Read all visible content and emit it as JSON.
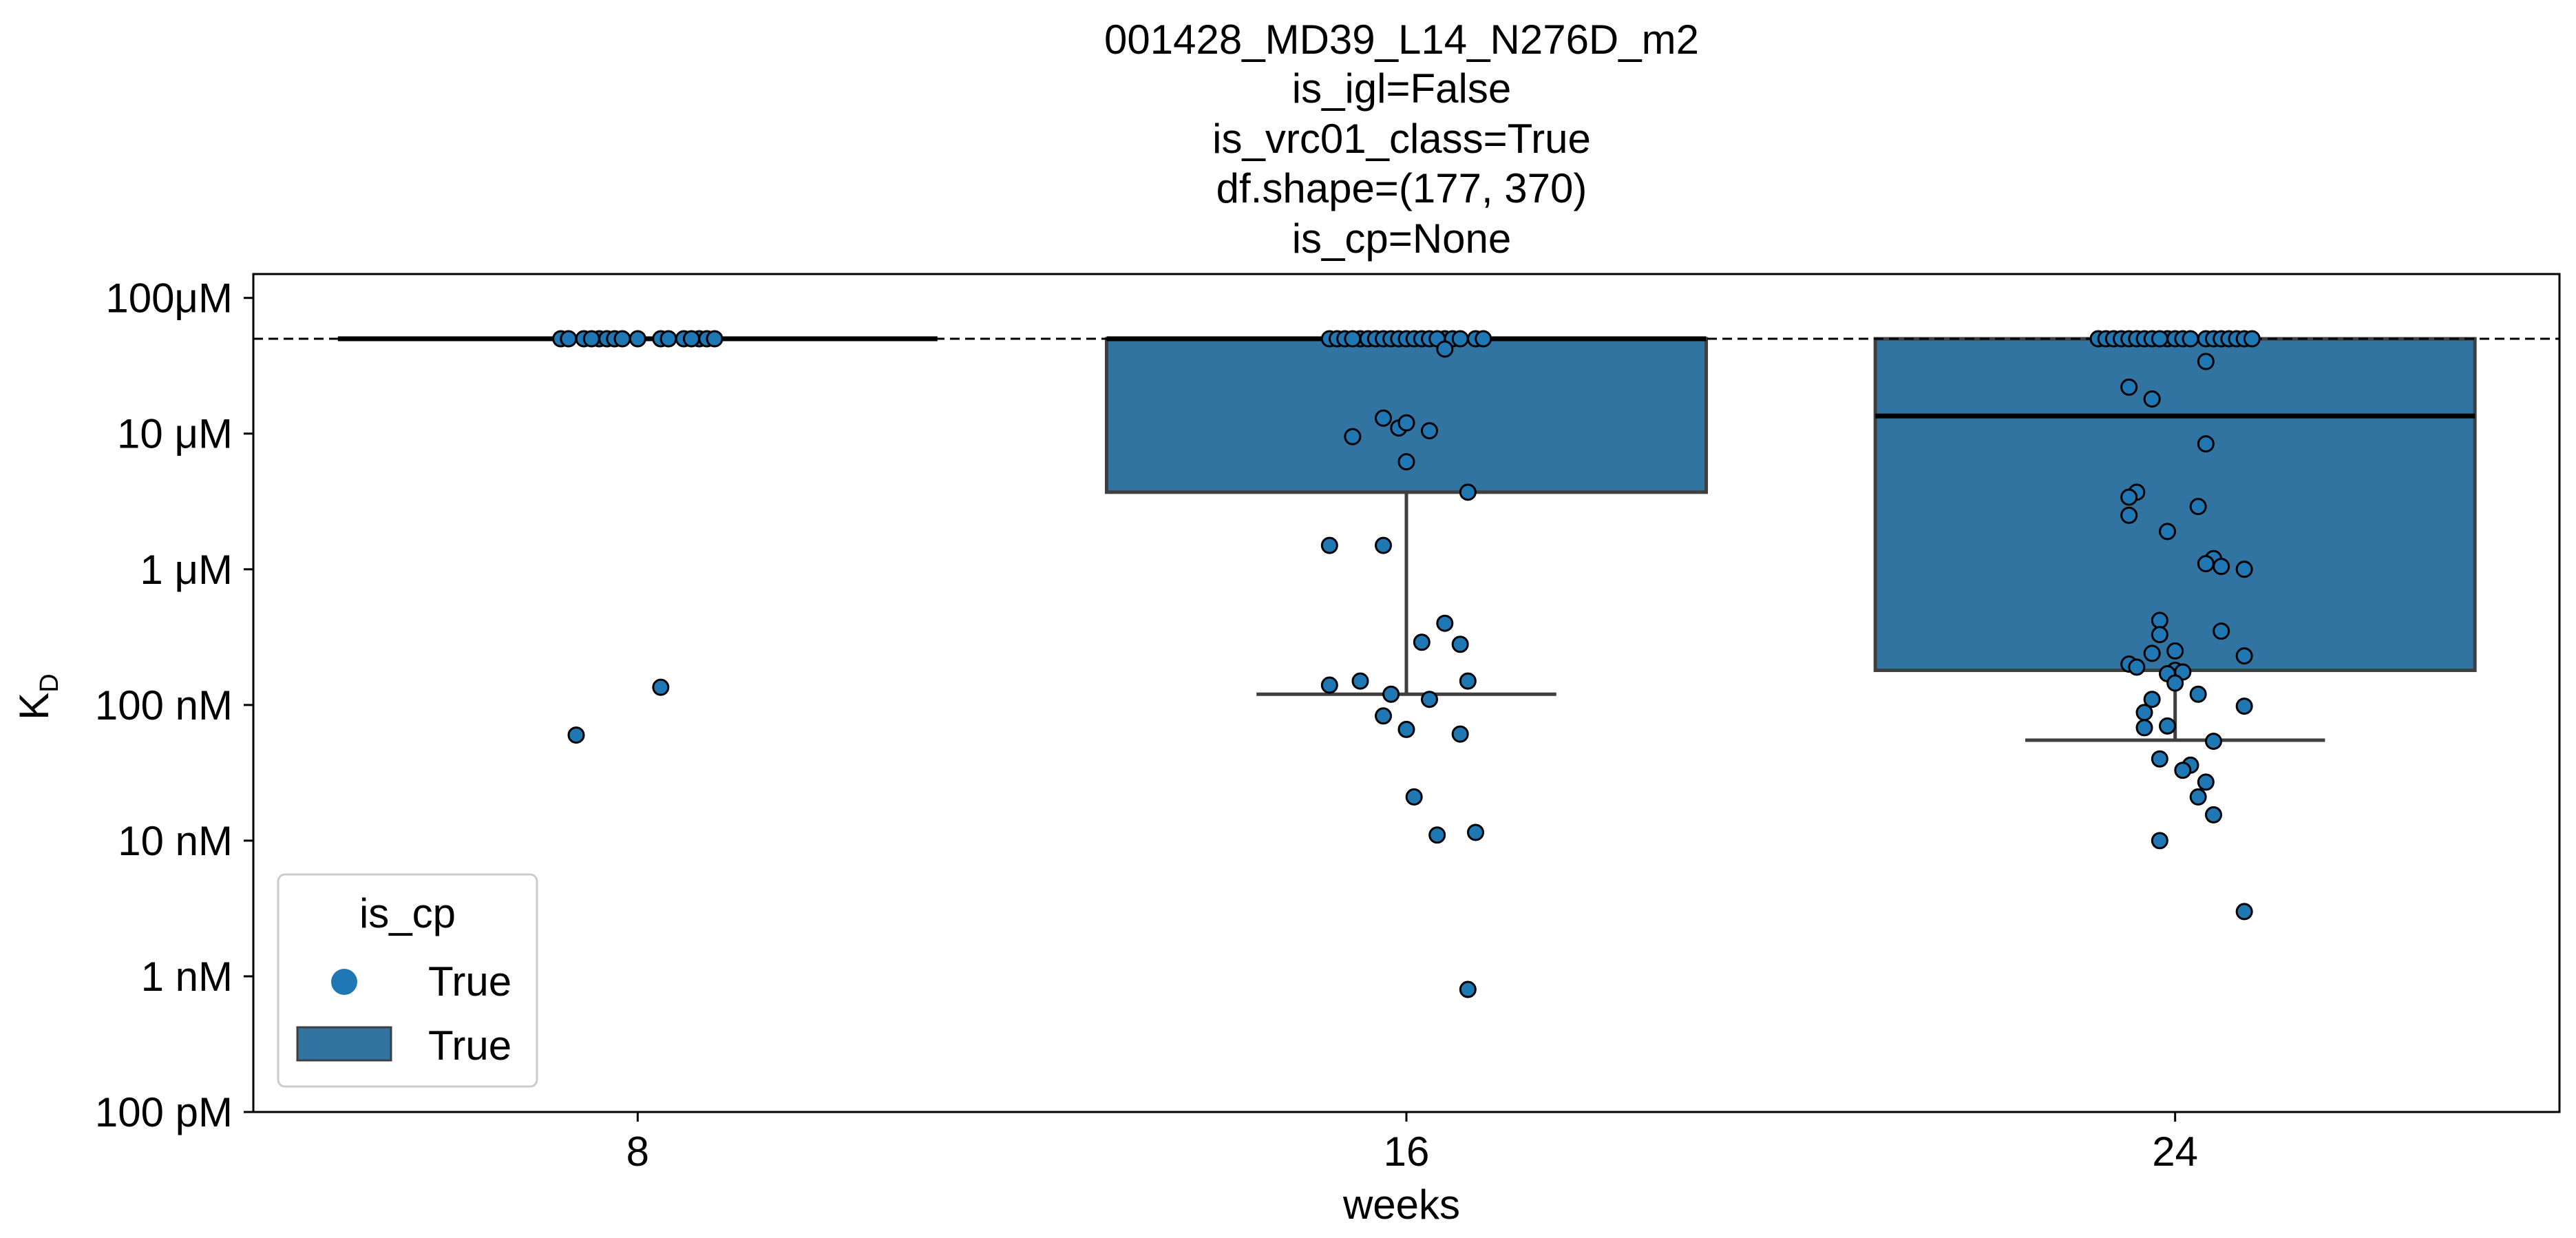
{
  "chart_data": {
    "type": "box",
    "title_lines": [
      "001428_MD39_L14_N276D_m2",
      "is_igl=False",
      "is_vrc01_class=True",
      "df.shape=(177, 370)",
      "is_cp=None"
    ],
    "xlabel": "weeks",
    "ylabel": "K",
    "ylabel_sub": "D",
    "y_scale": "log",
    "y_unit": "M",
    "ylim": [
      1e-10,
      0.00015
    ],
    "y_ticks": [
      {
        "value": 0.0001,
        "label": "100μM"
      },
      {
        "value": 1e-05,
        "label": "10 μM"
      },
      {
        "value": 1e-06,
        "label": "1 μM"
      },
      {
        "value": 1e-07,
        "label": "100 nM"
      },
      {
        "value": 1e-08,
        "label": "10 nM"
      },
      {
        "value": 1e-09,
        "label": "1 nM"
      },
      {
        "value": 1e-10,
        "label": "100 pM"
      }
    ],
    "categories": [
      "8",
      "16",
      "24"
    ],
    "reference_line": 5e-05,
    "box_color": "#3274a1",
    "point_color": "#1f77b4",
    "legend": {
      "title": "is_cp",
      "placement": "lower-left",
      "entries": [
        {
          "kind": "point",
          "label": "True"
        },
        {
          "kind": "box",
          "label": "True"
        }
      ]
    },
    "boxes": [
      {
        "category": "8",
        "q1": 5e-05,
        "median": 5e-05,
        "q3": 5e-05,
        "whisker_low": 5e-05,
        "whisker_high": 5e-05
      },
      {
        "category": "16",
        "q1": 3.7e-06,
        "median": 5e-05,
        "q3": 5e-05,
        "whisker_low": 1.2e-07,
        "whisker_high": 5e-05
      },
      {
        "category": "24",
        "q1": 1.8e-07,
        "median": 1.35e-05,
        "q3": 5e-05,
        "whisker_low": 5.5e-08,
        "whisker_high": 5e-05
      }
    ],
    "points": [
      {
        "category": "8",
        "values": [
          5e-05,
          5e-05,
          5e-05,
          5e-05,
          5e-05,
          5e-05,
          5e-05,
          5e-05,
          5e-05,
          5e-05,
          5e-05,
          5e-05,
          5e-05,
          5e-05,
          5e-05,
          5e-05,
          6e-08,
          1.35e-07
        ],
        "offsets": [
          -0.1,
          -0.09,
          -0.07,
          -0.05,
          -0.04,
          -0.03,
          -0.02,
          0,
          0.03,
          0.04,
          0.06,
          0.08,
          0.09,
          0.1,
          -0.06,
          0.07,
          -0.08,
          0.03
        ]
      },
      {
        "category": "16",
        "values": [
          5e-05,
          5e-05,
          5e-05,
          5e-05,
          5e-05,
          5e-05,
          5e-05,
          5e-05,
          5e-05,
          5e-05,
          5e-05,
          5e-05,
          5e-05,
          5e-05,
          5e-05,
          5e-05,
          5e-05,
          5e-05,
          5e-05,
          5e-05,
          4.2e-05,
          1.3e-05,
          1.1e-05,
          1.2e-05,
          9.5e-06,
          1.05e-05,
          6.2e-06,
          3.7e-06,
          1.5e-06,
          1.5e-06,
          4e-07,
          2.9e-07,
          2.8e-07,
          1.5e-07,
          1.4e-07,
          1.5e-07,
          1.2e-07,
          1.1e-07,
          8.3e-08,
          6.6e-08,
          6.1e-08,
          2.1e-08,
          1.1e-08,
          1.15e-08,
          8e-10
        ],
        "offsets": [
          -0.1,
          -0.09,
          -0.08,
          -0.06,
          -0.05,
          -0.04,
          -0.03,
          -0.02,
          -0.01,
          0,
          0.01,
          0.02,
          0.03,
          0.05,
          0.06,
          0.07,
          0.09,
          0.1,
          -0.07,
          0.04,
          0.05,
          -0.03,
          -0.01,
          0,
          -0.07,
          0.03,
          0.0,
          0.08,
          -0.1,
          -0.03,
          0.05,
          0.02,
          0.07,
          0.08,
          -0.1,
          -0.06,
          -0.02,
          0.03,
          -0.03,
          0.0,
          0.07,
          0.01,
          0.04,
          0.09,
          0.08
        ]
      },
      {
        "category": "24",
        "values": [
          5e-05,
          5e-05,
          5e-05,
          5e-05,
          5e-05,
          5e-05,
          5e-05,
          5e-05,
          5e-05,
          5e-05,
          5e-05,
          5e-05,
          5e-05,
          5e-05,
          5e-05,
          5e-05,
          5e-05,
          5e-05,
          5e-05,
          5e-05,
          3.4e-05,
          2.2e-05,
          1.8e-05,
          8.4e-06,
          3.7e-06,
          3.4e-06,
          2.9e-06,
          2.5e-06,
          1.9e-06,
          1.2e-06,
          1.1e-06,
          1.05e-06,
          1e-06,
          4.2e-07,
          3.3e-07,
          3.5e-07,
          2.5e-07,
          2.4e-07,
          2.3e-07,
          2e-07,
          1.9e-07,
          1.8e-07,
          1.75e-07,
          1.7e-07,
          1.45e-07,
          1.2e-07,
          1.1e-07,
          9.8e-08,
          8.8e-08,
          6.8e-08,
          7e-08,
          5.4e-08,
          4e-08,
          3.6e-08,
          3.3e-08,
          2.7e-08,
          2.1e-08,
          1.55e-08,
          1e-08,
          3e-09
        ],
        "offsets": [
          -0.1,
          -0.09,
          -0.08,
          -0.07,
          -0.06,
          -0.05,
          -0.04,
          -0.03,
          -0.01,
          0,
          0.01,
          0.02,
          0.04,
          0.05,
          0.06,
          0.07,
          0.08,
          0.09,
          0.1,
          -0.02,
          0.04,
          -0.06,
          -0.03,
          0.04,
          -0.05,
          -0.06,
          0.03,
          -0.06,
          -0.01,
          0.05,
          0.04,
          0.06,
          0.09,
          -0.02,
          -0.02,
          0.06,
          0.0,
          -0.03,
          0.09,
          -0.06,
          -0.05,
          0.0,
          0.01,
          -0.01,
          0.0,
          0.03,
          -0.03,
          0.09,
          -0.04,
          -0.04,
          -0.01,
          0.05,
          -0.02,
          0.02,
          0.01,
          0.04,
          0.03,
          0.05,
          -0.02,
          0.09
        ]
      }
    ]
  }
}
